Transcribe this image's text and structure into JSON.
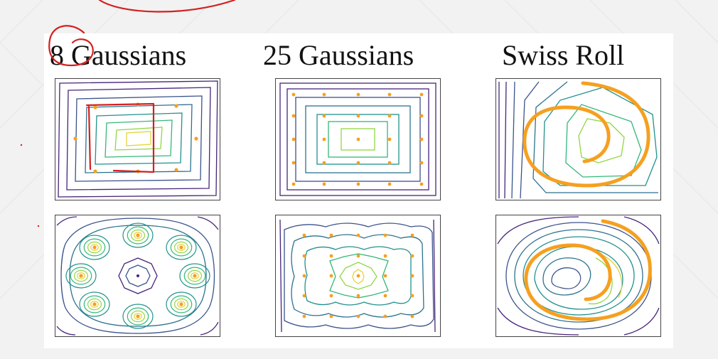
{
  "titles": [
    "8 Gaussians",
    "25 Gaussians",
    "Swiss Roll"
  ],
  "colors": {
    "background": "#f2f2f2",
    "contour_levels": [
      "#46237a",
      "#3b528b",
      "#2c728e",
      "#21918c",
      "#35b779",
      "#90d743",
      "#e3d43a"
    ],
    "points": "#f5a020",
    "annotation": "#d42020"
  }
}
